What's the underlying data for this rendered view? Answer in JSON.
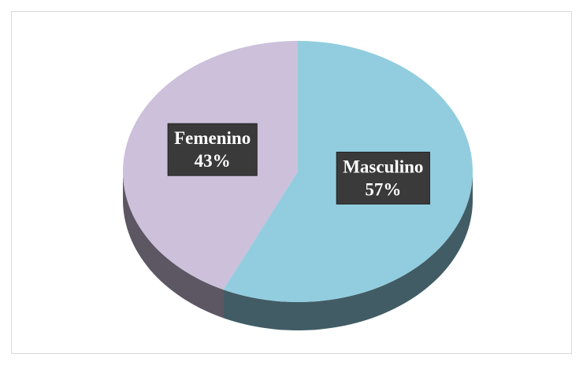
{
  "chart_data": {
    "type": "pie3d",
    "categories": [
      "Masculino",
      "Femenino"
    ],
    "values": [
      57,
      43
    ],
    "value_labels": [
      "57%",
      "43%"
    ],
    "colors": [
      "#92CDDF",
      "#CCC0DA"
    ]
  }
}
